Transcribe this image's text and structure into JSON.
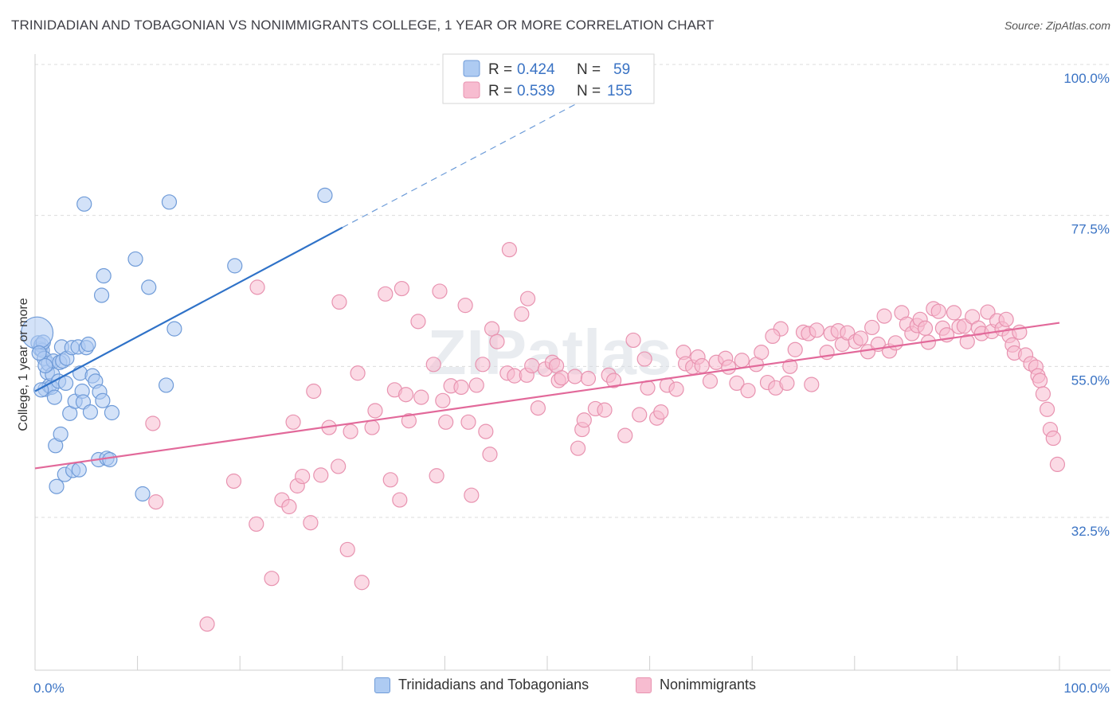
{
  "title": "TRINIDADIAN AND TOBAGONIAN VS NONIMMIGRANTS COLLEGE, 1 YEAR OR MORE CORRELATION CHART",
  "source": "Source: ZipAtlas.com",
  "colors": {
    "blue_fill": "#aecbf2",
    "blue_stroke": "#6f9bd8",
    "blue_line": "#2f72c8",
    "pink_fill": "#f7bcd0",
    "pink_stroke": "#e893b0",
    "pink_line": "#e2699a",
    "axis_label": "#3a73c4"
  },
  "legend": {
    "r_label": "R =",
    "n_label": "N =",
    "blue": {
      "r": "0.424",
      "n": "59"
    },
    "pink": {
      "r": "0.539",
      "n": "155"
    }
  },
  "bottom_legend": {
    "blue": "Trinidadians and Tobagonians",
    "pink": "Nonimmigrants"
  },
  "chart_data": {
    "type": "scatter",
    "xlabel": "",
    "ylabel": "College, 1 year or more",
    "xlim": [
      0,
      100
    ],
    "ylim": [
      10,
      102
    ],
    "y_ticks": [
      100,
      77.5,
      55,
      32.5
    ],
    "y_tick_labels": [
      "100.0%",
      "77.5%",
      "55.0%",
      "32.5%"
    ],
    "x_tick_labels": [
      "0.0%",
      "100.0%"
    ],
    "watermark": "ZIPatlas",
    "series": [
      {
        "name": "Trinidadians and Tobagonians",
        "r": 0.424,
        "n": 59,
        "trend": {
          "x0": 0,
          "y0": 51.3,
          "x1": 30,
          "y1": 75.7,
          "dash_to_x": 57,
          "dash_to_y": 97.5
        },
        "points": [
          [
            0.3,
            58.5
          ],
          [
            0.5,
            57.6
          ],
          [
            0.6,
            58.2
          ],
          [
            0.7,
            57.4
          ],
          [
            0.8,
            58.6
          ],
          [
            0.9,
            56.2
          ],
          [
            1.0,
            51.6
          ],
          [
            1.2,
            54.1
          ],
          [
            1.3,
            55.4
          ],
          [
            1.4,
            52.1
          ],
          [
            1.6,
            51.9
          ],
          [
            1.7,
            53.8
          ],
          [
            1.8,
            55.8
          ],
          [
            1.9,
            50.4
          ],
          [
            2.0,
            43.2
          ],
          [
            2.1,
            37.1
          ],
          [
            2.3,
            52.8
          ],
          [
            2.4,
            55.6
          ],
          [
            2.5,
            44.9
          ],
          [
            2.6,
            57.9
          ],
          [
            2.7,
            55.8
          ],
          [
            2.9,
            38.9
          ],
          [
            3.0,
            52.5
          ],
          [
            3.1,
            56.2
          ],
          [
            3.4,
            48.0
          ],
          [
            3.6,
            57.8
          ],
          [
            3.7,
            39.5
          ],
          [
            3.9,
            49.8
          ],
          [
            4.2,
            57.9
          ],
          [
            4.3,
            39.6
          ],
          [
            4.4,
            54.0
          ],
          [
            4.6,
            51.3
          ],
          [
            4.7,
            49.7
          ],
          [
            4.8,
            79.2
          ],
          [
            5.0,
            57.8
          ],
          [
            5.2,
            58.3
          ],
          [
            5.4,
            48.2
          ],
          [
            5.6,
            53.6
          ],
          [
            5.9,
            52.8
          ],
          [
            6.2,
            41.1
          ],
          [
            6.3,
            51.2
          ],
          [
            6.5,
            65.6
          ],
          [
            6.6,
            49.9
          ],
          [
            6.7,
            68.5
          ],
          [
            7.0,
            41.3
          ],
          [
            7.3,
            41.1
          ],
          [
            7.5,
            48.1
          ],
          [
            9.8,
            71.0
          ],
          [
            10.5,
            36.0
          ],
          [
            11.1,
            66.8
          ],
          [
            12.8,
            52.2
          ],
          [
            13.1,
            79.5
          ],
          [
            13.6,
            60.6
          ],
          [
            19.5,
            70.0
          ],
          [
            28.3,
            80.5
          ],
          [
            0.2,
            60.0
          ],
          [
            0.4,
            57.0
          ],
          [
            0.6,
            51.5
          ],
          [
            1.0,
            55.1
          ]
        ]
      },
      {
        "name": "Nonimmigrants",
        "r": 0.539,
        "n": 155,
        "trend": {
          "x0": 0,
          "y0": 39.8,
          "x1": 100,
          "y1": 61.5
        },
        "points": [
          [
            11.5,
            46.5
          ],
          [
            11.8,
            34.8
          ],
          [
            16.8,
            16.6
          ],
          [
            19.4,
            37.9
          ],
          [
            21.6,
            31.5
          ],
          [
            21.7,
            66.8
          ],
          [
            23.1,
            23.4
          ],
          [
            24.1,
            35.1
          ],
          [
            24.8,
            34.1
          ],
          [
            25.2,
            46.7
          ],
          [
            25.6,
            37.2
          ],
          [
            26.1,
            38.6
          ],
          [
            26.9,
            31.7
          ],
          [
            27.2,
            51.3
          ],
          [
            27.9,
            38.8
          ],
          [
            28.7,
            45.9
          ],
          [
            29.6,
            40.1
          ],
          [
            29.7,
            64.6
          ],
          [
            30.5,
            27.7
          ],
          [
            30.8,
            45.3
          ],
          [
            31.5,
            54.0
          ],
          [
            31.9,
            22.8
          ],
          [
            32.9,
            45.9
          ],
          [
            33.2,
            48.4
          ],
          [
            34.2,
            65.8
          ],
          [
            34.7,
            38.1
          ],
          [
            35.1,
            51.5
          ],
          [
            35.6,
            35.1
          ],
          [
            35.8,
            66.6
          ],
          [
            36.2,
            50.8
          ],
          [
            36.5,
            46.9
          ],
          [
            37.4,
            61.7
          ],
          [
            37.7,
            50.4
          ],
          [
            38.9,
            55.3
          ],
          [
            39.2,
            38.7
          ],
          [
            39.5,
            66.2
          ],
          [
            39.8,
            49.9
          ],
          [
            40.1,
            46.7
          ],
          [
            40.6,
            52.1
          ],
          [
            41.6,
            51.9
          ],
          [
            42.0,
            64.1
          ],
          [
            42.3,
            46.7
          ],
          [
            42.6,
            35.8
          ],
          [
            43.1,
            52.2
          ],
          [
            43.7,
            55.3
          ],
          [
            44.0,
            45.3
          ],
          [
            44.4,
            41.9
          ],
          [
            44.6,
            60.6
          ],
          [
            45.1,
            58.7
          ],
          [
            46.1,
            54.0
          ],
          [
            46.3,
            72.4
          ],
          [
            46.8,
            53.6
          ],
          [
            47.5,
            62.8
          ],
          [
            48.0,
            53.7
          ],
          [
            48.1,
            65.1
          ],
          [
            48.5,
            55.1
          ],
          [
            49.1,
            48.8
          ],
          [
            49.8,
            54.6
          ],
          [
            50.5,
            55.6
          ],
          [
            50.9,
            55.1
          ],
          [
            51.1,
            52.9
          ],
          [
            51.4,
            53.3
          ],
          [
            52.7,
            53.5
          ],
          [
            53.0,
            42.8
          ],
          [
            53.4,
            45.6
          ],
          [
            53.6,
            47.0
          ],
          [
            54.0,
            53.2
          ],
          [
            54.7,
            48.7
          ],
          [
            55.6,
            48.5
          ],
          [
            56.0,
            53.7
          ],
          [
            56.5,
            52.9
          ],
          [
            57.6,
            44.7
          ],
          [
            58.4,
            58.9
          ],
          [
            59.0,
            47.8
          ],
          [
            59.5,
            56.1
          ],
          [
            59.8,
            51.8
          ],
          [
            60.7,
            47.3
          ],
          [
            61.1,
            48.2
          ],
          [
            61.7,
            52.2
          ],
          [
            62.6,
            51.6
          ],
          [
            63.3,
            57.1
          ],
          [
            63.5,
            55.4
          ],
          [
            64.2,
            54.9
          ],
          [
            64.7,
            56.4
          ],
          [
            65.1,
            55.1
          ],
          [
            65.9,
            52.8
          ],
          [
            66.5,
            55.6
          ],
          [
            67.4,
            56.2
          ],
          [
            67.7,
            54.9
          ],
          [
            68.5,
            52.5
          ],
          [
            69.0,
            55.9
          ],
          [
            69.6,
            51.4
          ],
          [
            70.4,
            55.3
          ],
          [
            70.9,
            57.1
          ],
          [
            71.5,
            52.6
          ],
          [
            72.3,
            51.8
          ],
          [
            72.8,
            60.6
          ],
          [
            73.4,
            52.5
          ],
          [
            73.7,
            55.0
          ],
          [
            74.2,
            57.5
          ],
          [
            75.0,
            60.1
          ],
          [
            75.5,
            59.9
          ],
          [
            75.8,
            52.3
          ],
          [
            76.3,
            60.4
          ],
          [
            77.3,
            57.1
          ],
          [
            77.7,
            59.9
          ],
          [
            78.4,
            60.3
          ],
          [
            78.8,
            58.3
          ],
          [
            79.3,
            60.0
          ],
          [
            80.1,
            58.7
          ],
          [
            80.6,
            59.2
          ],
          [
            81.3,
            57.2
          ],
          [
            81.7,
            60.8
          ],
          [
            82.3,
            58.3
          ],
          [
            82.9,
            62.5
          ],
          [
            83.4,
            57.3
          ],
          [
            84.0,
            58.5
          ],
          [
            84.6,
            63.0
          ],
          [
            85.1,
            61.3
          ],
          [
            85.6,
            59.9
          ],
          [
            86.1,
            61.1
          ],
          [
            86.4,
            62.0
          ],
          [
            86.9,
            60.7
          ],
          [
            87.2,
            58.6
          ],
          [
            87.7,
            63.6
          ],
          [
            88.2,
            63.2
          ],
          [
            88.6,
            60.7
          ],
          [
            89.0,
            59.7
          ],
          [
            89.7,
            63.0
          ],
          [
            90.2,
            60.9
          ],
          [
            90.7,
            61.0
          ],
          [
            91.0,
            58.7
          ],
          [
            91.5,
            62.4
          ],
          [
            92.1,
            60.7
          ],
          [
            92.4,
            59.9
          ],
          [
            93.0,
            63.1
          ],
          [
            93.4,
            60.2
          ],
          [
            93.9,
            61.8
          ],
          [
            94.4,
            60.6
          ],
          [
            94.8,
            62.0
          ],
          [
            95.1,
            59.6
          ],
          [
            95.4,
            58.2
          ],
          [
            95.6,
            57.0
          ],
          [
            96.1,
            60.1
          ],
          [
            96.7,
            56.7
          ],
          [
            97.2,
            55.4
          ],
          [
            97.7,
            54.9
          ],
          [
            97.9,
            53.6
          ],
          [
            98.1,
            52.9
          ],
          [
            98.4,
            50.9
          ],
          [
            98.8,
            48.6
          ],
          [
            99.1,
            45.6
          ],
          [
            99.4,
            44.3
          ],
          [
            99.8,
            40.4
          ],
          [
            72.0,
            59.5
          ]
        ]
      }
    ]
  }
}
